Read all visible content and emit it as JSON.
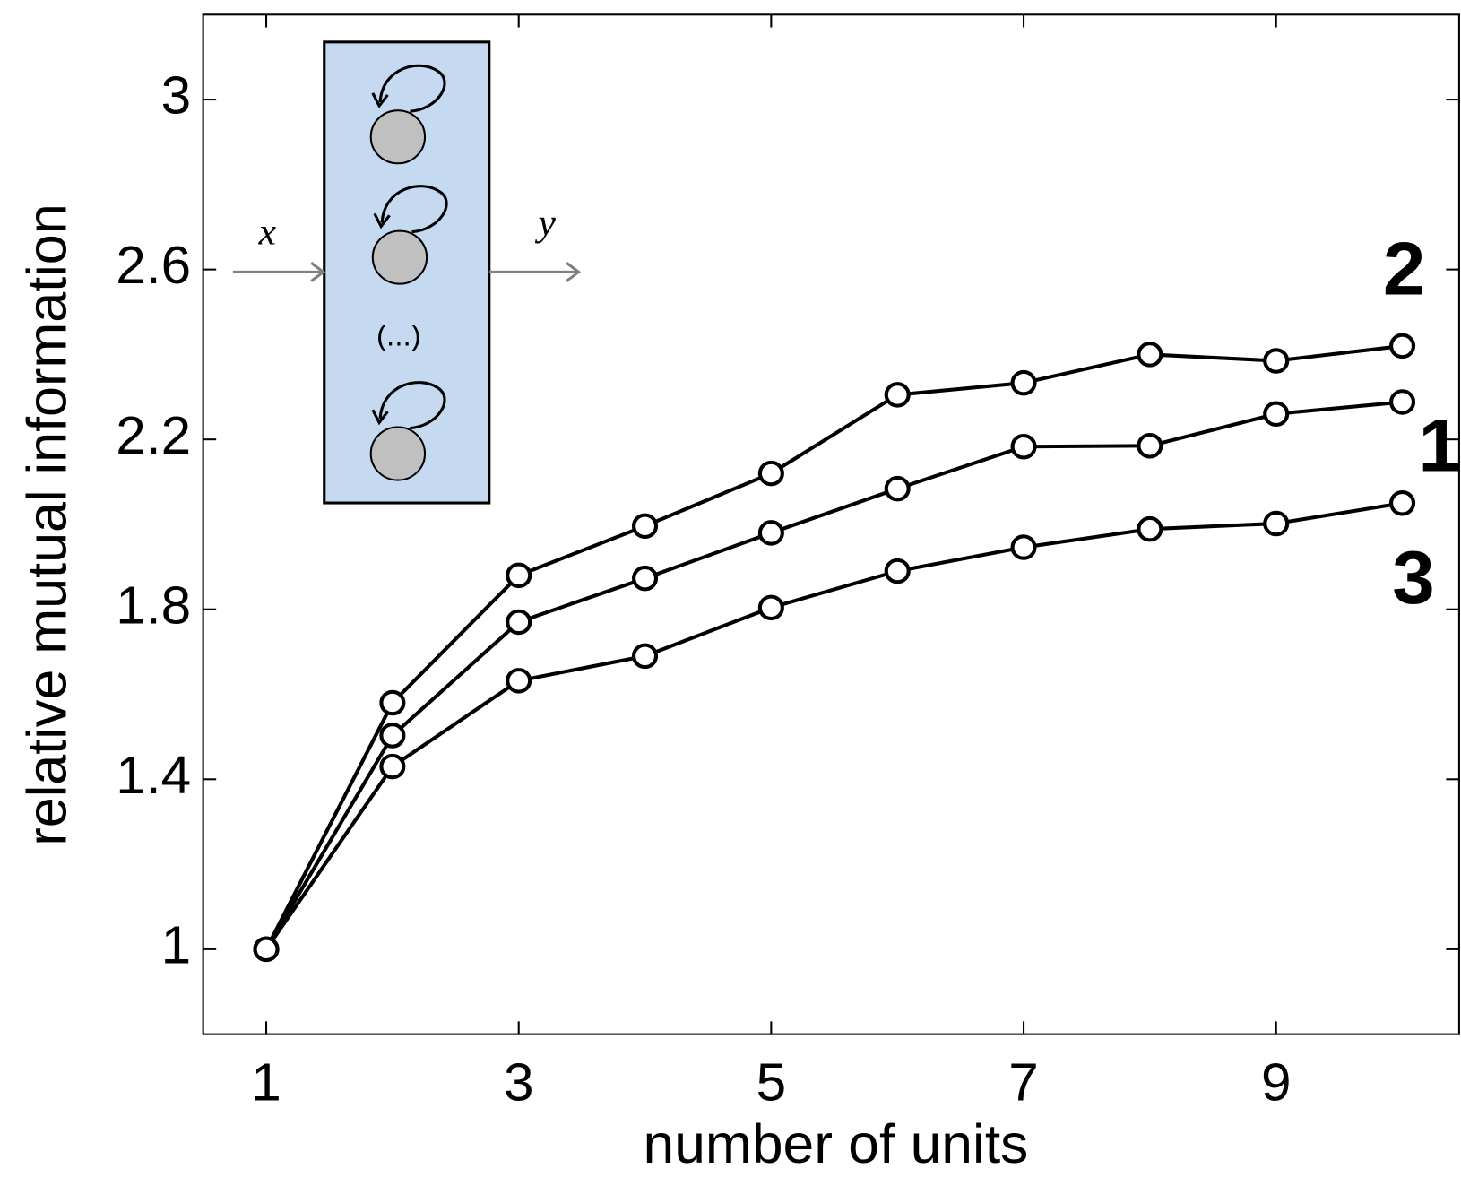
{
  "chart_data": {
    "type": "line",
    "x_label": "number of units",
    "y_label": "relative mutual information",
    "x": [
      1,
      2,
      3,
      4,
      5,
      6,
      7,
      8,
      9,
      10
    ],
    "series": [
      {
        "name": "2",
        "color": "#000000",
        "values": [
          1,
          1.58,
          1.88,
          1.996,
          2.12,
          2.305,
          2.333,
          2.4,
          2.385,
          2.42
        ]
      },
      {
        "name": "1",
        "color": "#000000",
        "values": [
          1,
          1.503,
          1.77,
          1.873,
          1.98,
          2.084,
          2.183,
          2.185,
          2.26,
          2.288
        ]
      },
      {
        "name": "3",
        "color": "#000000",
        "values": [
          1,
          1.43,
          1.632,
          1.69,
          1.804,
          1.89,
          1.946,
          1.989,
          2.002,
          2.05
        ]
      }
    ],
    "xlim": [
      0.5,
      10.45
    ],
    "ylim": [
      0.8,
      3.2
    ],
    "xticks": [
      1,
      3,
      5,
      7,
      9
    ],
    "yticks": [
      1,
      1.4,
      1.8,
      2.2,
      2.6,
      3
    ],
    "grid": false,
    "inset": {
      "input": "x",
      "output": "y",
      "ellipsis": "(...)"
    }
  }
}
